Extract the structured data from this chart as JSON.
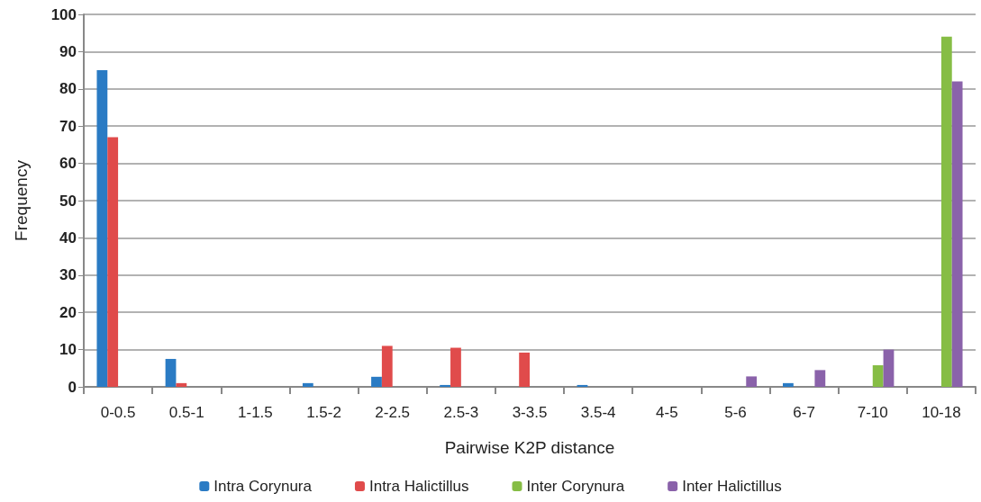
{
  "chart_data": {
    "type": "bar",
    "xlabel": "Pairwise K2P distance",
    "ylabel": "Frequency",
    "categories": [
      "0-0.5",
      "0.5-1",
      "1-1.5",
      "1.5-2",
      "2-2.5",
      "2.5-3",
      "3-3.5",
      "3.5-4",
      "4-5",
      "5-6",
      "6-7",
      "7-10",
      "10-18"
    ],
    "series": [
      {
        "name": "Intra Corynura",
        "color": "#2a7bc4",
        "values": [
          85,
          7.5,
          0,
          1,
          2.7,
          0.5,
          0,
          0.5,
          0,
          0,
          1,
          0,
          0
        ]
      },
      {
        "name": "Intra Halictillus",
        "color": "#e04b4b",
        "values": [
          67,
          1,
          0,
          0,
          11,
          10.5,
          9.2,
          0,
          0,
          0,
          0,
          0,
          0
        ]
      },
      {
        "name": "Inter Corynura",
        "color": "#86bd45",
        "values": [
          0,
          0,
          0,
          0,
          0,
          0,
          0,
          0,
          0,
          0,
          0,
          5.8,
          94
        ]
      },
      {
        "name": "Inter Halictillus",
        "color": "#8a62aa",
        "values": [
          0,
          0,
          0,
          0,
          0,
          0,
          0,
          0,
          0,
          2.8,
          4.5,
          10,
          82
        ]
      }
    ],
    "ylim": [
      0,
      100
    ],
    "yticks": [
      0,
      10,
      20,
      30,
      40,
      50,
      60,
      70,
      80,
      90,
      100
    ],
    "grid": "y",
    "legend": "bottom"
  }
}
